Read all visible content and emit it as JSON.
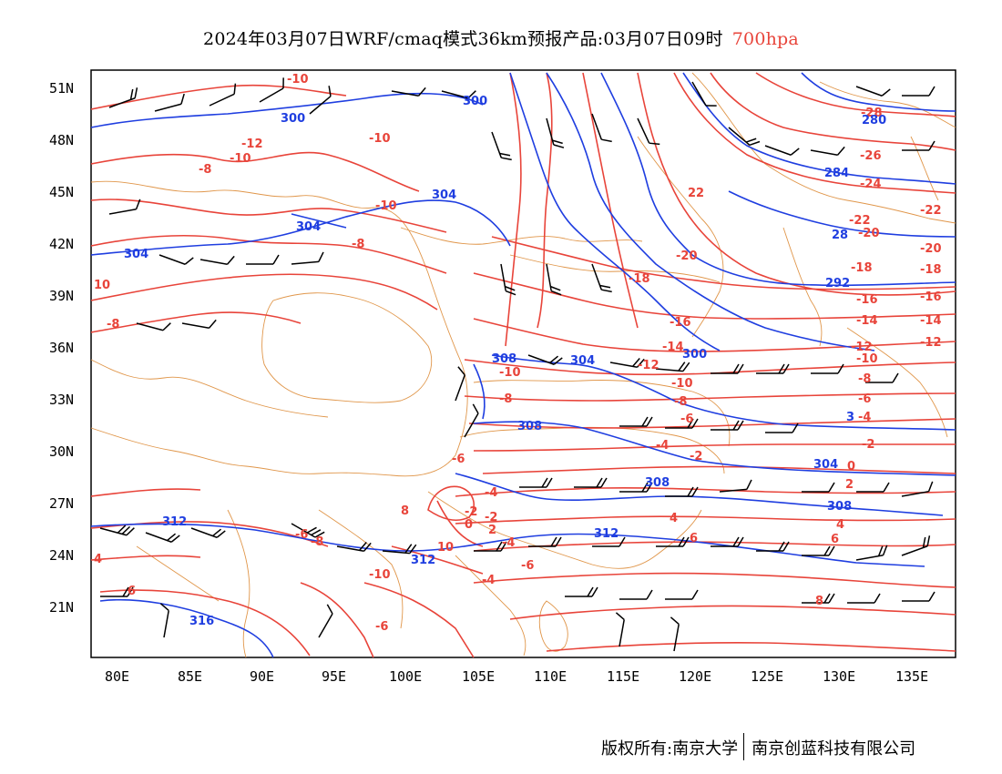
{
  "title": {
    "text": "2024年03月07日WRF/cmaq模式36km预报产品:03月07日09时",
    "level": "700hpa",
    "level_color": "#e8443a"
  },
  "colors": {
    "temperature_contour": "#e8443a",
    "height_contour": "#1f3ee0",
    "borders": "#e0964a",
    "wind_barb": "#000000"
  },
  "axes": {
    "lat_labels": [
      "51N",
      "48N",
      "45N",
      "42N",
      "39N",
      "36N",
      "33N",
      "30N",
      "27N",
      "24N",
      "21N"
    ],
    "lon_labels": [
      "80E",
      "85E",
      "90E",
      "95E",
      "100E",
      "105E",
      "110E",
      "115E",
      "120E",
      "125E",
      "130E",
      "135E"
    ]
  },
  "temperature_labels": [
    "-10",
    "-10",
    "-12",
    "-8",
    "-10",
    "-10",
    "-8",
    "10",
    "-8",
    "-10",
    "-8",
    "-6",
    "-4",
    "-2",
    "0",
    "-2",
    "2",
    "-4",
    "-6",
    "-4",
    "-6",
    "-8",
    "-10",
    "-6",
    "4",
    "6",
    "8",
    "10",
    "-28",
    "-26",
    "-24",
    "-22",
    "-20",
    "-18",
    "-16",
    "-14",
    "-12",
    "-10",
    "-8",
    "-6",
    "-4",
    "-2",
    "0",
    "2",
    "4",
    "6",
    "8",
    "6",
    "4",
    "-4",
    "-2",
    "-6",
    "-8",
    "-10",
    "-12",
    "-14",
    "-16",
    "-18",
    "-20",
    "22",
    "-22",
    "-20",
    "-18",
    "-16",
    "-14",
    "-12"
  ],
  "height_labels": [
    "300",
    "300",
    "304",
    "304",
    "304",
    "308",
    "304",
    "308",
    "300",
    "284",
    "280",
    "292",
    "28",
    "304",
    "308",
    "308",
    "312",
    "312",
    "312",
    "316",
    "3"
  ],
  "footer": {
    "copyright": "版权所有:南京大学",
    "company": "南京创蓝科技有限公司"
  }
}
